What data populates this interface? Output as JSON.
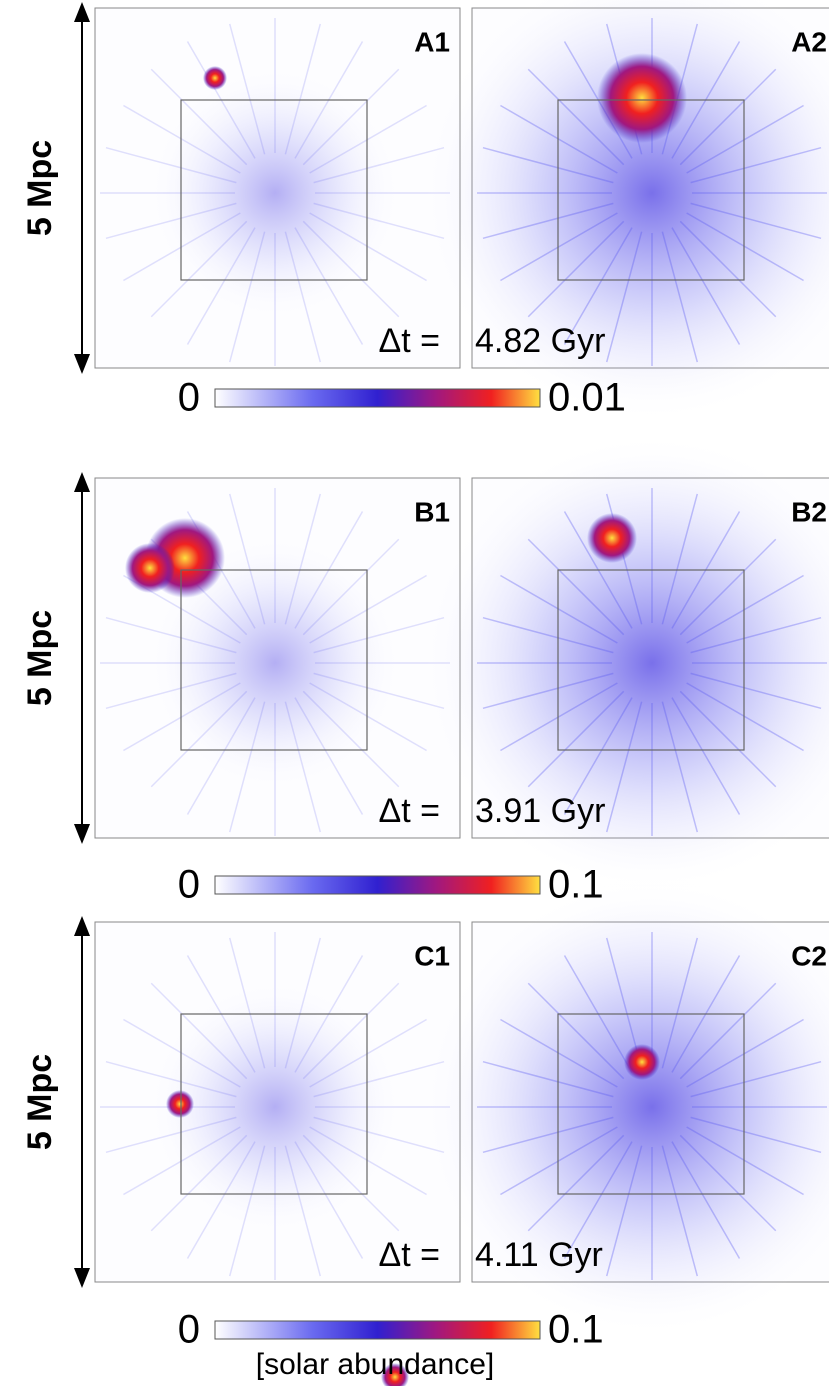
{
  "rows": [
    {
      "scale_label": "5 Mpc",
      "panels": [
        "A1",
        "A2"
      ],
      "dt_label": "Δt =",
      "dt_value": "4.82 Gyr",
      "colorbar": {
        "min": "0",
        "max": "0.01"
      }
    },
    {
      "scale_label": "5 Mpc",
      "panels": [
        "B1",
        "B2"
      ],
      "dt_label": "Δt =",
      "dt_value": "3.91 Gyr",
      "colorbar": {
        "min": "0",
        "max": "0.1"
      }
    },
    {
      "scale_label": "5 Mpc",
      "panels": [
        "C1",
        "C2"
      ],
      "dt_label": "Δt =",
      "dt_value": "4.11 Gyr",
      "colorbar": {
        "min": "0",
        "max": "0.1"
      }
    }
  ],
  "colorbar_unit": "[solar abundance]"
}
